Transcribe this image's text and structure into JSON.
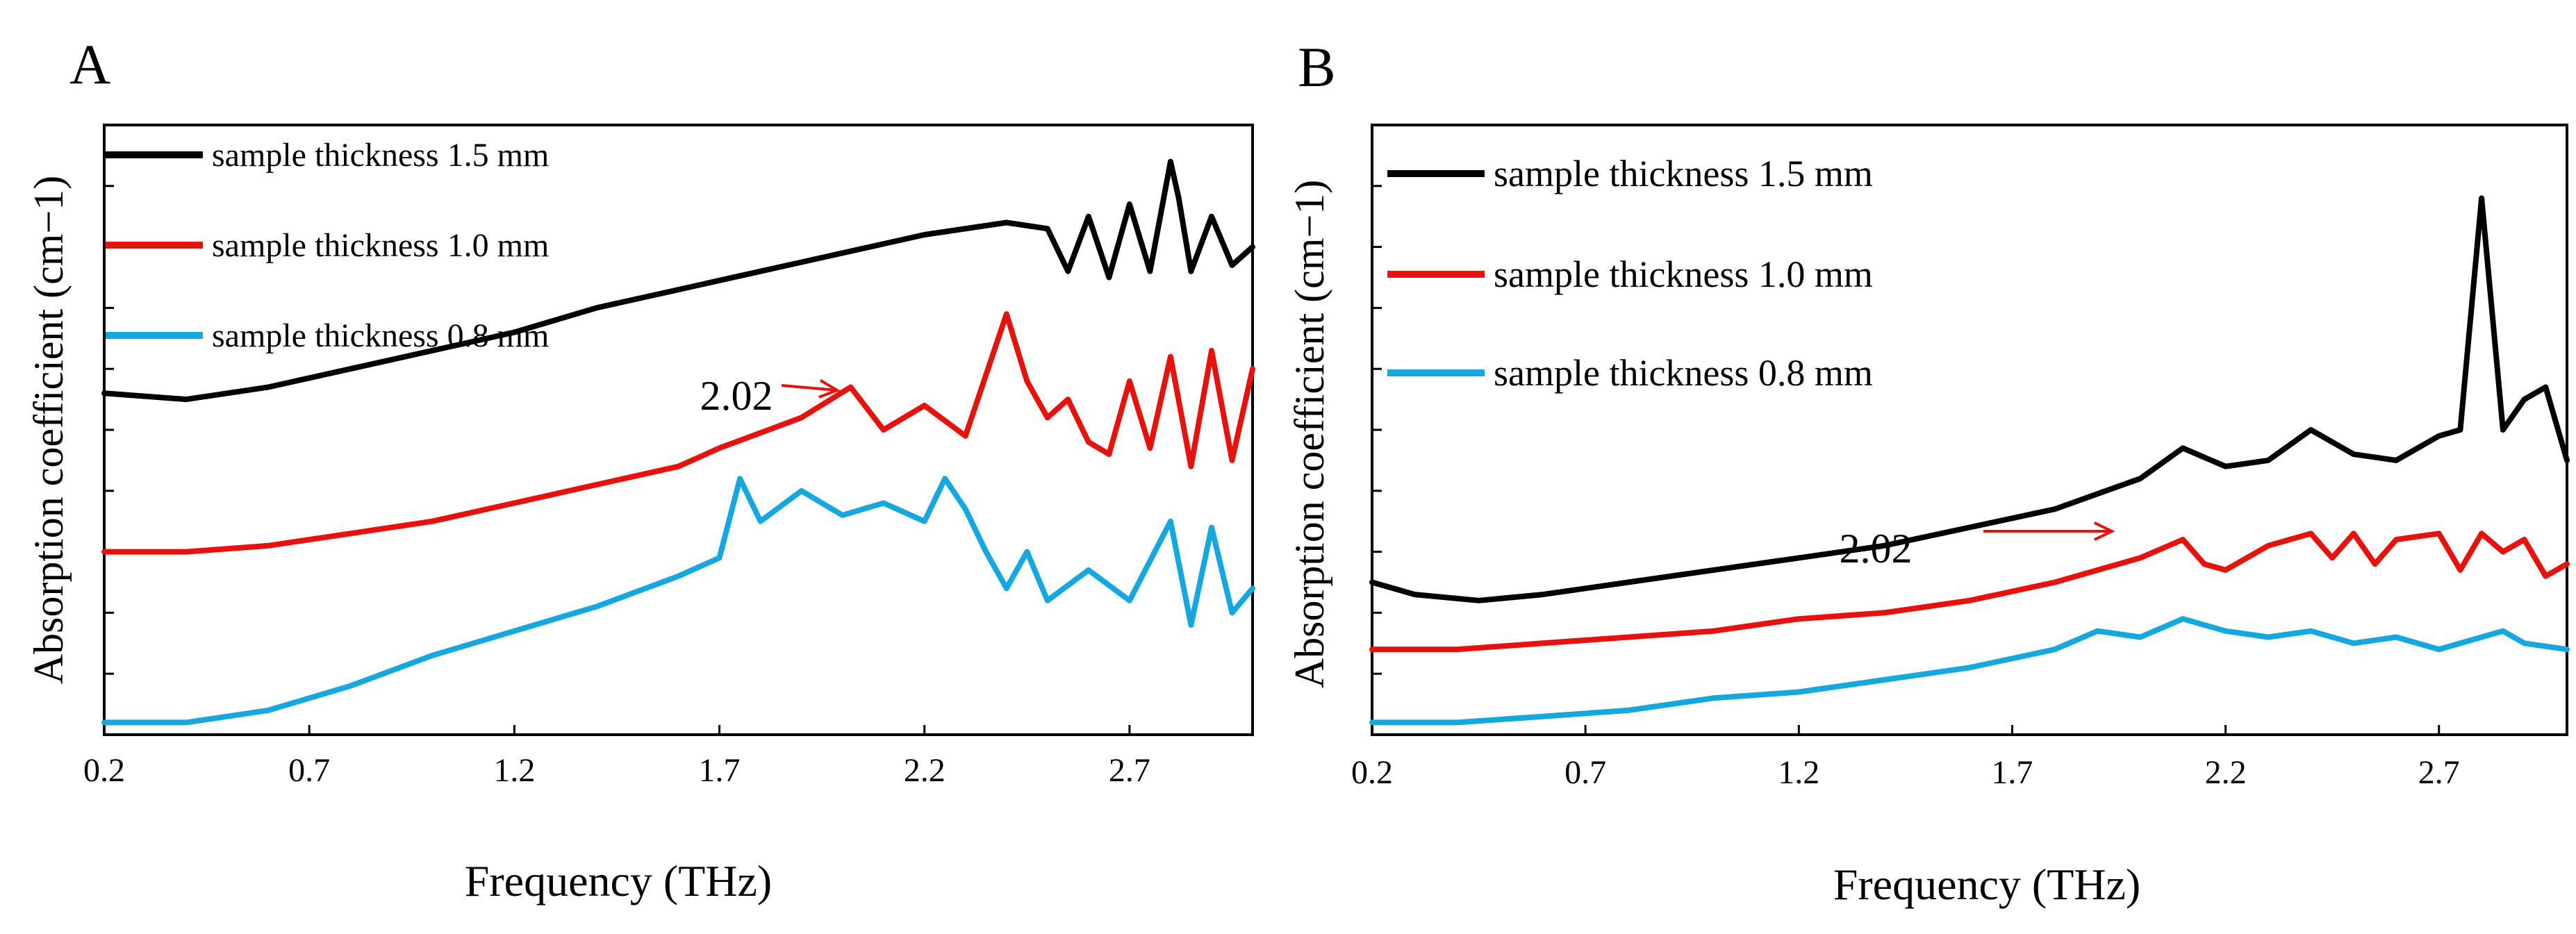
{
  "chart_data": [
    {
      "type": "line",
      "panel_label": "A",
      "xlabel": "Frequency (THz)",
      "ylabel": "Absorption coefficient (cm−1)",
      "xlim": [
        0.2,
        3.0
      ],
      "ylim": [
        0,
        100
      ],
      "x_ticks": [
        0.2,
        0.7,
        1.2,
        1.7,
        2.2,
        2.7
      ],
      "x_tick_labels": [
        "0.2",
        "0.7",
        "1.2",
        "1.7",
        "2.2",
        "2.7"
      ],
      "y_ticks": [
        10,
        20,
        30,
        40,
        50,
        60,
        70,
        80,
        90
      ],
      "legend": [
        "sample thickness 1.5 mm",
        "sample thickness 1.0 mm",
        "sample thickness 0.8 mm"
      ],
      "legend_location": "top-left",
      "annotation": {
        "text": "2.02",
        "x": 2.02,
        "y": 57,
        "color": "#e8120c"
      },
      "series": [
        {
          "name": "sample thickness 1.5 mm",
          "color": "#000000",
          "x": [
            0.2,
            0.4,
            0.6,
            0.8,
            1.0,
            1.2,
            1.4,
            1.6,
            1.8,
            2.0,
            2.2,
            2.4,
            2.5,
            2.55,
            2.6,
            2.65,
            2.7,
            2.75,
            2.8,
            2.82,
            2.85,
            2.9,
            2.95,
            3.0
          ],
          "values": [
            56,
            55,
            57,
            60,
            63,
            66,
            70,
            73,
            76,
            79,
            82,
            84,
            83,
            76,
            85,
            75,
            87,
            76,
            94,
            88,
            76,
            85,
            77,
            80
          ]
        },
        {
          "name": "sample thickness 1.0 mm",
          "color": "#e8120c",
          "x": [
            0.2,
            0.4,
            0.6,
            0.8,
            1.0,
            1.2,
            1.4,
            1.6,
            1.7,
            1.9,
            2.02,
            2.1,
            2.2,
            2.3,
            2.4,
            2.45,
            2.5,
            2.55,
            2.6,
            2.65,
            2.7,
            2.75,
            2.8,
            2.85,
            2.9,
            2.95,
            3.0
          ],
          "values": [
            30,
            30,
            31,
            33,
            35,
            38,
            41,
            44,
            47,
            52,
            57,
            50,
            54,
            49,
            69,
            58,
            52,
            55,
            48,
            46,
            58,
            47,
            62,
            44,
            63,
            45,
            60
          ]
        },
        {
          "name": "sample thickness 0.8 mm",
          "color": "#15a7e0",
          "x": [
            0.2,
            0.4,
            0.6,
            0.8,
            1.0,
            1.2,
            1.4,
            1.6,
            1.7,
            1.75,
            1.8,
            1.9,
            2.0,
            2.1,
            2.2,
            2.25,
            2.3,
            2.35,
            2.4,
            2.45,
            2.5,
            2.6,
            2.7,
            2.8,
            2.85,
            2.9,
            2.95,
            3.0
          ],
          "values": [
            2,
            2,
            4,
            8,
            13,
            17,
            21,
            26,
            29,
            42,
            35,
            40,
            36,
            38,
            35,
            42,
            37,
            30,
            24,
            30,
            22,
            27,
            22,
            35,
            18,
            34,
            20,
            24
          ]
        }
      ]
    },
    {
      "type": "line",
      "panel_label": "B",
      "xlabel": "Frequency (THz)",
      "ylabel": "Absorption coefficient (cm−1)",
      "xlim": [
        0.2,
        3.0
      ],
      "ylim": [
        0,
        100
      ],
      "x_ticks": [
        0.2,
        0.7,
        1.2,
        1.7,
        2.2,
        2.7
      ],
      "x_tick_labels": [
        "0.2",
        "0.7",
        "1.2",
        "1.7",
        "2.2",
        "2.7"
      ],
      "y_ticks": [
        10,
        20,
        30,
        40,
        50,
        60,
        70,
        80,
        90
      ],
      "legend": [
        "sample thickness 1.5 mm",
        "sample thickness 1.0 mm",
        "sample thickness 0.8 mm"
      ],
      "legend_location": "top-left",
      "annotation": {
        "text": "2.02",
        "x": 2.02,
        "y": 30,
        "color": "#e8120c"
      },
      "series": [
        {
          "name": "sample thickness 1.5 mm",
          "color": "#000000",
          "x": [
            0.2,
            0.3,
            0.45,
            0.6,
            0.8,
            1.0,
            1.2,
            1.4,
            1.6,
            1.8,
            2.0,
            2.1,
            2.2,
            2.3,
            2.4,
            2.5,
            2.6,
            2.7,
            2.75,
            2.8,
            2.85,
            2.9,
            2.95,
            3.0
          ],
          "values": [
            25,
            23,
            22,
            23,
            25,
            27,
            29,
            31,
            34,
            37,
            42,
            47,
            44,
            45,
            50,
            46,
            45,
            49,
            50,
            88,
            50,
            55,
            57,
            45
          ]
        },
        {
          "name": "sample thickness 1.0 mm",
          "color": "#e8120c",
          "x": [
            0.2,
            0.4,
            0.6,
            0.8,
            1.0,
            1.2,
            1.4,
            1.6,
            1.8,
            2.0,
            2.1,
            2.15,
            2.2,
            2.3,
            2.4,
            2.45,
            2.5,
            2.55,
            2.6,
            2.7,
            2.75,
            2.8,
            2.85,
            2.9,
            2.95,
            3.0
          ],
          "values": [
            14,
            14,
            15,
            16,
            17,
            19,
            20,
            22,
            25,
            29,
            32,
            28,
            27,
            31,
            33,
            29,
            33,
            28,
            32,
            33,
            27,
            33,
            30,
            32,
            26,
            28
          ]
        },
        {
          "name": "sample thickness 0.8 mm",
          "color": "#15a7e0",
          "x": [
            0.2,
            0.4,
            0.6,
            0.8,
            1.0,
            1.2,
            1.4,
            1.6,
            1.8,
            1.9,
            2.0,
            2.1,
            2.2,
            2.3,
            2.4,
            2.5,
            2.6,
            2.7,
            2.8,
            2.85,
            2.9,
            3.0
          ],
          "values": [
            2,
            2,
            3,
            4,
            6,
            7,
            9,
            11,
            14,
            17,
            16,
            19,
            17,
            16,
            17,
            15,
            16,
            14,
            16,
            17,
            15,
            14
          ]
        }
      ]
    }
  ]
}
